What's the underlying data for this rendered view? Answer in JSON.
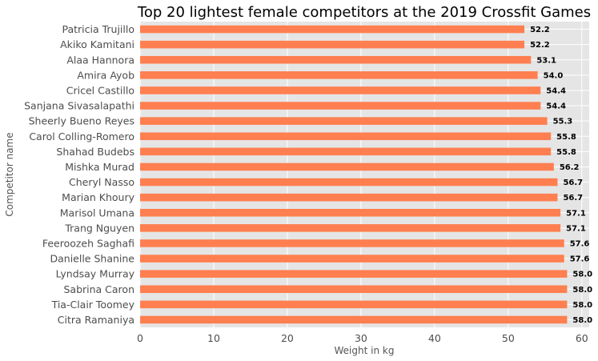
{
  "chart_data": {
    "type": "bar",
    "orientation": "horizontal",
    "title": "Top 20 lightest female competitors at the 2019 Crossfit Games",
    "xlabel": "Weight in kg",
    "ylabel": "Competitor name",
    "xlim": [
      0,
      61
    ],
    "xticks": [
      0,
      10,
      20,
      30,
      40,
      50,
      60
    ],
    "grid": true,
    "legend": "none",
    "bar_color": "#ff7f50",
    "background_color": "#e5e5e5",
    "categories": [
      "Patricia Trujillo",
      "Akiko Kamitani",
      "Alaa Hannora",
      "Amira Ayob",
      "Cricel Castillo",
      "Sanjana Sivasalapathi",
      "Sheerly Bueno Reyes",
      "Carol Colling-Romero",
      "Shahad Budebs",
      "Mishka Murad",
      "Cheryl Nasso",
      "Marian Khoury",
      "Marisol Umana",
      "Trang Nguyen",
      "Feeroozeh Saghafi",
      "Danielle Shanine",
      "Lyndsay Murray",
      "Sabrina Caron",
      "Tia-Clair Toomey",
      "Citra Ramaniya"
    ],
    "values": [
      52.2,
      52.2,
      53.1,
      54.0,
      54.4,
      54.4,
      55.3,
      55.8,
      55.8,
      56.2,
      56.7,
      56.7,
      57.1,
      57.1,
      57.6,
      57.6,
      58.0,
      58.0,
      58.0,
      58.0
    ],
    "value_labels": [
      "52.2",
      "52.2",
      "53.1",
      "54.0",
      "54.4",
      "54.4",
      "55.3",
      "55.8",
      "55.8",
      "56.2",
      "56.7",
      "56.7",
      "57.1",
      "57.1",
      "57.6",
      "57.6",
      "58.0",
      "58.0",
      "58.0",
      "58.0"
    ]
  }
}
